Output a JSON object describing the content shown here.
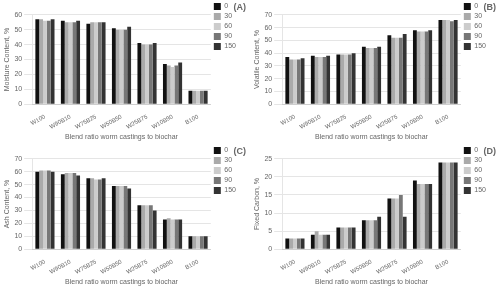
{
  "chart_data": [
    {
      "type": "bar",
      "title": "(A)",
      "categories": [
        "W100",
        "W90B10",
        "W75B25",
        "W50B50",
        "W25B75",
        "W10B90",
        "B100"
      ],
      "series": [
        {
          "name": "0",
          "color": "#111111",
          "values": [
            57,
            56,
            54,
            51,
            41,
            27,
            9
          ]
        },
        {
          "name": "30",
          "color": "#aaaaaa",
          "values": [
            57,
            55,
            55,
            50,
            40,
            26,
            9
          ]
        },
        {
          "name": "60",
          "color": "#cccccc",
          "values": [
            56,
            55,
            55,
            50,
            40,
            25,
            9
          ]
        },
        {
          "name": "90",
          "color": "#777777",
          "values": [
            56,
            55,
            55,
            50,
            40,
            26,
            9
          ]
        },
        {
          "name": "150",
          "color": "#333333",
          "values": [
            57,
            56,
            55,
            52,
            41,
            28,
            9
          ]
        }
      ],
      "xlabel": "Blend ratio worm castings to biochar",
      "ylabel": "Moisture Content, %",
      "ylim": [
        0,
        60
      ],
      "yticks": [
        0,
        10,
        20,
        30,
        40,
        50,
        60
      ],
      "grid": true,
      "legend": "right"
    },
    {
      "type": "bar",
      "title": "(B)",
      "categories": [
        "W100",
        "W90B10",
        "W75B25",
        "W50B50",
        "W25B75",
        "W10B90",
        "B100"
      ],
      "series": [
        {
          "name": "0",
          "color": "#111111",
          "values": [
            37,
            38,
            39,
            45,
            54,
            58,
            66
          ]
        },
        {
          "name": "30",
          "color": "#aaaaaa",
          "values": [
            35,
            37,
            39,
            44,
            52,
            57,
            66
          ]
        },
        {
          "name": "60",
          "color": "#cccccc",
          "values": [
            35,
            37,
            39,
            44,
            52,
            57,
            66
          ]
        },
        {
          "name": "90",
          "color": "#777777",
          "values": [
            35,
            37,
            39,
            44,
            52,
            57,
            65
          ]
        },
        {
          "name": "150",
          "color": "#333333",
          "values": [
            36,
            38,
            40,
            45,
            55,
            58,
            66
          ]
        }
      ],
      "xlabel": "Blend ratio worm castings to biochar",
      "ylabel": "Volatile Content, %",
      "ylim": [
        0,
        70
      ],
      "yticks": [
        0,
        10,
        20,
        30,
        40,
        50,
        60,
        70
      ],
      "grid": true,
      "legend": "right"
    },
    {
      "type": "bar",
      "title": "(C)",
      "categories": [
        "W100",
        "W90B10",
        "W75B25",
        "W50B50",
        "W25B75",
        "W10B90",
        "B100"
      ],
      "series": [
        {
          "name": "0",
          "color": "#111111",
          "values": [
            60,
            58,
            55,
            49,
            34,
            23,
            10
          ]
        },
        {
          "name": "30",
          "color": "#aaaaaa",
          "values": [
            61,
            59,
            55,
            49,
            34,
            24,
            10
          ]
        },
        {
          "name": "60",
          "color": "#cccccc",
          "values": [
            61,
            59,
            54,
            49,
            34,
            23,
            10
          ]
        },
        {
          "name": "90",
          "color": "#777777",
          "values": [
            61,
            59,
            54,
            49,
            34,
            23,
            10
          ]
        },
        {
          "name": "150",
          "color": "#333333",
          "values": [
            60,
            57,
            55,
            47,
            30,
            23,
            10
          ]
        }
      ],
      "xlabel": "Blend ratio worm castings to biochar",
      "ylabel": "Ash Content, %",
      "ylim": [
        0,
        70
      ],
      "yticks": [
        0,
        10,
        20,
        30,
        40,
        50,
        60,
        70
      ],
      "grid": true,
      "legend": "right"
    },
    {
      "type": "bar",
      "title": "(D)",
      "categories": [
        "W100",
        "W90B10",
        "W75B25",
        "W50B50",
        "W25B75",
        "W10B90",
        "B100"
      ],
      "series": [
        {
          "name": "0",
          "color": "#111111",
          "values": [
            3,
            4,
            6,
            8,
            14,
            19,
            24
          ]
        },
        {
          "name": "30",
          "color": "#aaaaaa",
          "values": [
            3,
            5,
            6,
            8,
            14,
            18,
            24
          ]
        },
        {
          "name": "60",
          "color": "#cccccc",
          "values": [
            3,
            4,
            6,
            8,
            14,
            18,
            24
          ]
        },
        {
          "name": "90",
          "color": "#777777",
          "values": [
            3,
            4,
            6,
            8,
            15,
            18,
            24
          ]
        },
        {
          "name": "150",
          "color": "#333333",
          "values": [
            3,
            4,
            6,
            9,
            9,
            18,
            24
          ]
        }
      ],
      "xlabel": "Blend ratio worm castings to biochar",
      "ylabel": "Fixed Carbon, %",
      "ylim": [
        0,
        25
      ],
      "yticks": [
        0,
        5,
        10,
        15,
        20,
        25
      ],
      "grid": true,
      "legend": "right"
    }
  ]
}
